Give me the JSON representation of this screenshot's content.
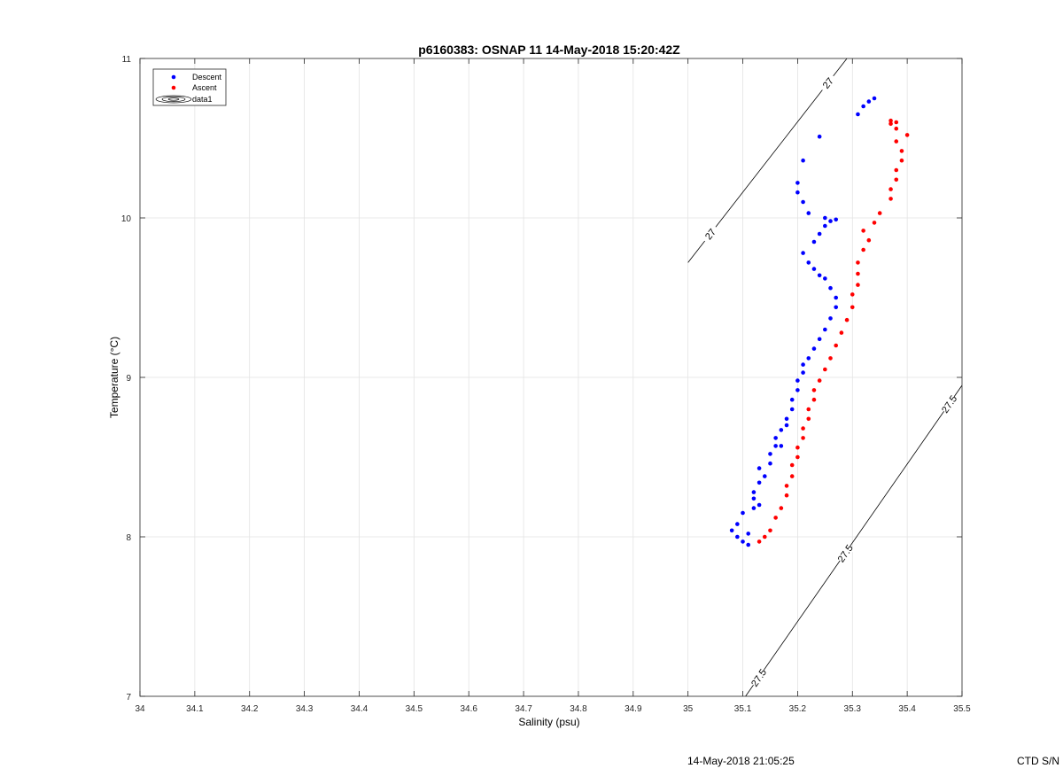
{
  "chart_data": {
    "type": "scatter",
    "title": "p6160383: OSNAP 11 14-May-2018 15:20:42Z",
    "xlabel": "Salinity (psu)",
    "ylabel": "Temperature (°C)",
    "xlim": [
      34,
      35.5
    ],
    "ylim": [
      7,
      11
    ],
    "xticks": [
      "34",
      "34.1",
      "34.2",
      "34.3",
      "34.4",
      "34.5",
      "34.6",
      "34.7",
      "34.8",
      "34.9",
      "35",
      "35.1",
      "35.2",
      "35.3",
      "35.4",
      "35.5"
    ],
    "yticks": [
      "7",
      "8",
      "9",
      "10",
      "11"
    ],
    "grid": true,
    "legend_position": "top-left",
    "legend": [
      "Descent",
      "Ascent",
      "data1"
    ],
    "series": [
      {
        "name": "Descent",
        "color": "#0000ff",
        "points": [
          [
            35.11,
            7.95
          ],
          [
            35.1,
            7.97
          ],
          [
            35.09,
            8.0
          ],
          [
            35.11,
            8.02
          ],
          [
            35.08,
            8.04
          ],
          [
            35.09,
            8.08
          ],
          [
            35.1,
            8.15
          ],
          [
            35.12,
            8.18
          ],
          [
            35.13,
            8.2
          ],
          [
            35.12,
            8.24
          ],
          [
            35.12,
            8.28
          ],
          [
            35.13,
            8.34
          ],
          [
            35.14,
            8.38
          ],
          [
            35.13,
            8.43
          ],
          [
            35.15,
            8.46
          ],
          [
            35.15,
            8.52
          ],
          [
            35.16,
            8.57
          ],
          [
            35.17,
            8.57
          ],
          [
            35.16,
            8.62
          ],
          [
            35.17,
            8.67
          ],
          [
            35.18,
            8.7
          ],
          [
            35.18,
            8.74
          ],
          [
            35.19,
            8.8
          ],
          [
            35.19,
            8.86
          ],
          [
            35.2,
            8.92
          ],
          [
            35.2,
            8.98
          ],
          [
            35.21,
            9.03
          ],
          [
            35.21,
            9.08
          ],
          [
            35.22,
            9.12
          ],
          [
            35.23,
            9.18
          ],
          [
            35.24,
            9.24
          ],
          [
            35.25,
            9.3
          ],
          [
            35.26,
            9.37
          ],
          [
            35.27,
            9.44
          ],
          [
            35.27,
            9.5
          ],
          [
            35.26,
            9.56
          ],
          [
            35.25,
            9.62
          ],
          [
            35.24,
            9.64
          ],
          [
            35.23,
            9.68
          ],
          [
            35.22,
            9.72
          ],
          [
            35.21,
            9.78
          ],
          [
            35.23,
            9.85
          ],
          [
            35.24,
            9.9
          ],
          [
            35.25,
            9.95
          ],
          [
            35.26,
            9.98
          ],
          [
            35.27,
            9.99
          ],
          [
            35.25,
            10.0
          ],
          [
            35.22,
            10.03
          ],
          [
            35.21,
            10.1
          ],
          [
            35.2,
            10.16
          ],
          [
            35.2,
            10.22
          ],
          [
            35.21,
            10.36
          ],
          [
            35.24,
            10.51
          ],
          [
            35.31,
            10.65
          ],
          [
            35.32,
            10.7
          ],
          [
            35.33,
            10.73
          ],
          [
            35.34,
            10.75
          ]
        ]
      },
      {
        "name": "Ascent",
        "color": "#ff0000",
        "points": [
          [
            35.13,
            7.97
          ],
          [
            35.14,
            8.0
          ],
          [
            35.15,
            8.04
          ],
          [
            35.16,
            8.12
          ],
          [
            35.17,
            8.18
          ],
          [
            35.18,
            8.26
          ],
          [
            35.18,
            8.32
          ],
          [
            35.19,
            8.38
          ],
          [
            35.19,
            8.45
          ],
          [
            35.2,
            8.5
          ],
          [
            35.2,
            8.56
          ],
          [
            35.21,
            8.62
          ],
          [
            35.21,
            8.68
          ],
          [
            35.22,
            8.74
          ],
          [
            35.22,
            8.8
          ],
          [
            35.23,
            8.86
          ],
          [
            35.23,
            8.92
          ],
          [
            35.24,
            8.98
          ],
          [
            35.25,
            9.05
          ],
          [
            35.26,
            9.12
          ],
          [
            35.27,
            9.2
          ],
          [
            35.28,
            9.28
          ],
          [
            35.29,
            9.36
          ],
          [
            35.3,
            9.44
          ],
          [
            35.3,
            9.52
          ],
          [
            35.31,
            9.58
          ],
          [
            35.31,
            9.65
          ],
          [
            35.31,
            9.72
          ],
          [
            35.32,
            9.8
          ],
          [
            35.33,
            9.86
          ],
          [
            35.32,
            9.92
          ],
          [
            35.34,
            9.97
          ],
          [
            35.35,
            10.03
          ],
          [
            35.37,
            10.12
          ],
          [
            35.37,
            10.18
          ],
          [
            35.38,
            10.24
          ],
          [
            35.38,
            10.3
          ],
          [
            35.39,
            10.36
          ],
          [
            35.39,
            10.42
          ],
          [
            35.38,
            10.48
          ],
          [
            35.4,
            10.52
          ],
          [
            35.38,
            10.56
          ],
          [
            35.37,
            10.59
          ],
          [
            35.38,
            10.6
          ],
          [
            35.37,
            10.61
          ]
        ]
      }
    ],
    "contours": [
      {
        "value": "27",
        "labels": [
          "27",
          "27"
        ]
      },
      {
        "value": "27.5",
        "labels": [
          "27.5",
          "27.5",
          "27.5"
        ]
      }
    ],
    "footer": {
      "timestamp": "14-May-2018 21:05:25",
      "serial": "CTD S/N"
    }
  }
}
